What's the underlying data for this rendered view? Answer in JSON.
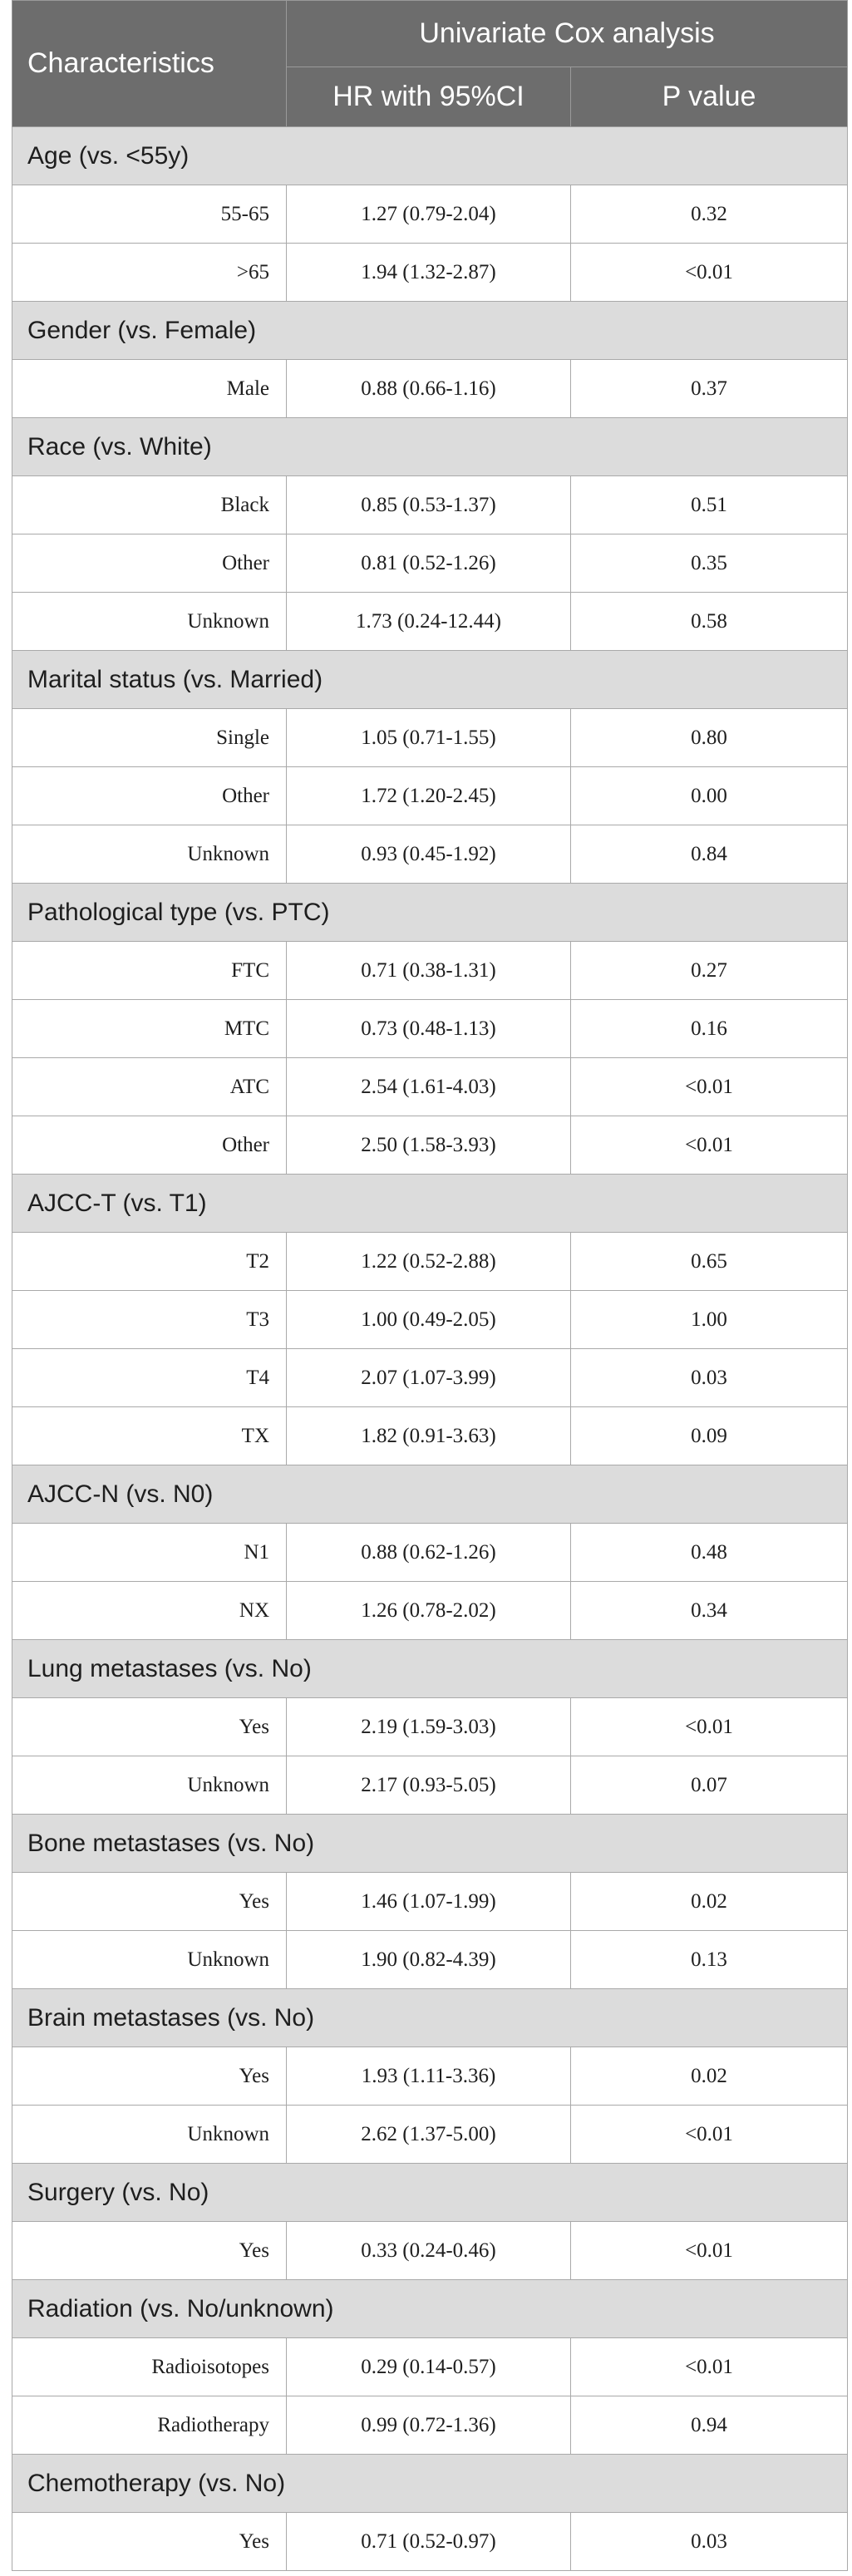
{
  "header": {
    "characteristics": "Characteristics",
    "group_title": "Univariate Cox analysis",
    "hr_col": "HR with 95%CI",
    "p_col": "P value"
  },
  "sections": [
    {
      "label": "Age (vs. <55y)",
      "rows": [
        {
          "level": "55-65",
          "hr": "1.27 (0.79-2.04)",
          "p": "0.32"
        },
        {
          "level": ">65",
          "hr": "1.94 (1.32-2.87)",
          "p": "<0.01"
        }
      ]
    },
    {
      "label": "Gender (vs. Female)",
      "rows": [
        {
          "level": "Male",
          "hr": "0.88 (0.66-1.16)",
          "p": "0.37"
        }
      ]
    },
    {
      "label": "Race (vs. White)",
      "rows": [
        {
          "level": "Black",
          "hr": "0.85 (0.53-1.37)",
          "p": "0.51"
        },
        {
          "level": "Other",
          "hr": "0.81 (0.52-1.26)",
          "p": "0.35"
        },
        {
          "level": "Unknown",
          "hr": "1.73 (0.24-12.44)",
          "p": "0.58"
        }
      ]
    },
    {
      "label": "Marital status (vs. Married)",
      "rows": [
        {
          "level": "Single",
          "hr": "1.05 (0.71-1.55)",
          "p": "0.80"
        },
        {
          "level": "Other",
          "hr": "1.72 (1.20-2.45)",
          "p": "0.00"
        },
        {
          "level": "Unknown",
          "hr": "0.93 (0.45-1.92)",
          "p": "0.84"
        }
      ]
    },
    {
      "label": "Pathological type (vs. PTC)",
      "rows": [
        {
          "level": "FTC",
          "hr": "0.71 (0.38-1.31)",
          "p": "0.27"
        },
        {
          "level": "MTC",
          "hr": "0.73 (0.48-1.13)",
          "p": "0.16"
        },
        {
          "level": "ATC",
          "hr": "2.54 (1.61-4.03)",
          "p": "<0.01"
        },
        {
          "level": "Other",
          "hr": "2.50 (1.58-3.93)",
          "p": "<0.01"
        }
      ]
    },
    {
      "label": "AJCC-T (vs. T1)",
      "rows": [
        {
          "level": "T2",
          "hr": "1.22 (0.52-2.88)",
          "p": "0.65"
        },
        {
          "level": "T3",
          "hr": "1.00 (0.49-2.05)",
          "p": "1.00"
        },
        {
          "level": "T4",
          "hr": "2.07 (1.07-3.99)",
          "p": "0.03"
        },
        {
          "level": "TX",
          "hr": "1.82 (0.91-3.63)",
          "p": "0.09"
        }
      ]
    },
    {
      "label": "AJCC-N (vs. N0)",
      "rows": [
        {
          "level": "N1",
          "hr": "0.88 (0.62-1.26)",
          "p": "0.48"
        },
        {
          "level": "NX",
          "hr": "1.26 (0.78-2.02)",
          "p": "0.34"
        }
      ]
    },
    {
      "label": "Lung metastases (vs. No)",
      "rows": [
        {
          "level": "Yes",
          "hr": "2.19 (1.59-3.03)",
          "p": "<0.01"
        },
        {
          "level": "Unknown",
          "hr": "2.17 (0.93-5.05)",
          "p": "0.07"
        }
      ]
    },
    {
      "label": "Bone metastases (vs. No)",
      "rows": [
        {
          "level": "Yes",
          "hr": "1.46 (1.07-1.99)",
          "p": "0.02"
        },
        {
          "level": "Unknown",
          "hr": "1.90 (0.82-4.39)",
          "p": "0.13"
        }
      ]
    },
    {
      "label": "Brain metastases (vs. No)",
      "rows": [
        {
          "level": "Yes",
          "hr": "1.93 (1.11-3.36)",
          "p": "0.02"
        },
        {
          "level": "Unknown",
          "hr": "2.62 (1.37-5.00)",
          "p": "<0.01"
        }
      ]
    },
    {
      "label": "Surgery (vs. No)",
      "rows": [
        {
          "level": "Yes",
          "hr": "0.33 (0.24-0.46)",
          "p": "<0.01"
        }
      ]
    },
    {
      "label": "Radiation (vs. No/unknown)",
      "rows": [
        {
          "level": "Radioisotopes",
          "hr": "0.29 (0.14-0.57)",
          "p": "<0.01"
        },
        {
          "level": "Radiotherapy",
          "hr": "0.99 (0.72-1.36)",
          "p": "0.94"
        }
      ]
    },
    {
      "label": "Chemotherapy (vs. No)",
      "rows": [
        {
          "level": "Yes",
          "hr": "0.71 (0.52-0.97)",
          "p": "0.03"
        }
      ]
    }
  ]
}
